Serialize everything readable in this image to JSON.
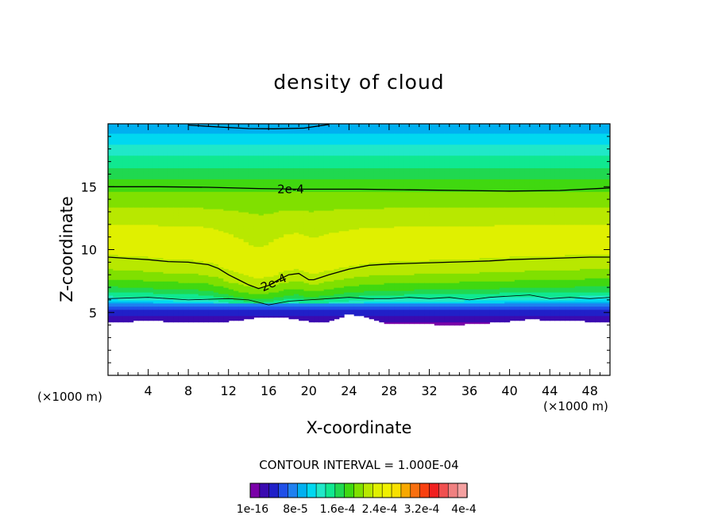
{
  "chart_data": {
    "type": "heatmap",
    "title": "density of cloud",
    "xlabel": "X-coordinate",
    "ylabel": "Z-coordinate",
    "x_unit_label": "(×1000 m)",
    "y_unit_label": "(×1000 m)",
    "xlim": [
      0,
      50
    ],
    "ylim": [
      0,
      20
    ],
    "x_ticks": [
      4,
      8,
      12,
      16,
      20,
      24,
      28,
      32,
      36,
      40,
      44,
      48
    ],
    "y_ticks": [
      5,
      10,
      15
    ],
    "contour_interval_text": "CONTOUR INTERVAL = 1.000E-04",
    "contour_line_labels": [
      "2e-4",
      "2e-4"
    ],
    "colorbar": {
      "tick_labels": [
        "1e-16",
        "8e-5",
        "1.6e-4",
        "2.4e-4",
        "3.2e-4",
        "4e-4"
      ],
      "colors": [
        "#7a00a8",
        "#3a0ab0",
        "#2020c8",
        "#1f4fe8",
        "#1f80f0",
        "#00b0f0",
        "#00d8f0",
        "#20e8c8",
        "#10e890",
        "#20d850",
        "#40d810",
        "#80e000",
        "#b8e800",
        "#e0f000",
        "#f0f000",
        "#f8e000",
        "#f8a800",
        "#f87010",
        "#f84010",
        "#f02020",
        "#f05050",
        "#f08080",
        "#f4a0a0"
      ],
      "range": [
        1e-16,
        0.00042
      ]
    },
    "profile": {
      "z": [
        4.0,
        4.3,
        4.9,
        5.3,
        5.6,
        5.9,
        6.2,
        7.0,
        8.0,
        9.0,
        10.0,
        11.0,
        12.0,
        13.0,
        14.0,
        15.0,
        16.0,
        17.0,
        18.0,
        19.0,
        20.0
      ],
      "value": [
        1e-16,
        2e-05,
        4e-05,
        6e-05,
        8e-05,
        0.00011,
        0.00014,
        0.00018,
        0.00021,
        0.00023,
        0.000242,
        0.000245,
        0.000238,
        0.000225,
        0.00021,
        0.000195,
        0.000175,
        0.000155,
        0.000135,
        0.000115,
        9.5e-05
      ]
    },
    "cloud_base_z": {
      "x": [
        0,
        4,
        8,
        12,
        14,
        16,
        18,
        20,
        22,
        24,
        26,
        28,
        30,
        32,
        34,
        36,
        38,
        40,
        42,
        44,
        46,
        48,
        50
      ],
      "z": [
        4.2,
        4.4,
        4.2,
        4.3,
        4.5,
        4.7,
        4.6,
        4.3,
        4.3,
        4.9,
        4.6,
        4.1,
        4.2,
        4.1,
        4.0,
        4.1,
        4.2,
        4.3,
        4.5,
        4.4,
        4.4,
        4.3,
        4.3
      ]
    },
    "contour_lines": [
      {
        "label": "2e-4",
        "x": [
          0,
          5,
          10,
          15,
          19,
          21,
          25,
          30,
          35,
          40,
          45,
          50
        ],
        "z": [
          15.0,
          15.0,
          14.95,
          14.85,
          14.8,
          14.8,
          14.8,
          14.75,
          14.7,
          14.65,
          14.7,
          14.9
        ]
      },
      {
        "label": "2e-4",
        "x": [
          0,
          2,
          4,
          6,
          8,
          10,
          11,
          12,
          13,
          14,
          15,
          16,
          17,
          18,
          19,
          20,
          20.5,
          22,
          24,
          26,
          28,
          30,
          32,
          34,
          36,
          38,
          40,
          44,
          48,
          50
        ],
        "z": [
          9.4,
          9.3,
          9.2,
          9.05,
          9.0,
          8.8,
          8.5,
          8.0,
          7.6,
          7.2,
          6.9,
          7.15,
          7.6,
          8.0,
          8.1,
          7.6,
          7.6,
          8.0,
          8.45,
          8.75,
          8.85,
          8.9,
          8.95,
          9.0,
          9.05,
          9.1,
          9.2,
          9.3,
          9.4,
          9.4
        ]
      },
      {
        "label": "",
        "x": [
          0,
          4,
          8,
          12,
          14,
          16,
          18,
          20,
          22,
          24,
          26,
          28,
          30,
          32,
          34,
          36,
          38,
          40,
          42,
          44,
          46,
          48,
          50
        ],
        "z": [
          6.1,
          6.2,
          6.0,
          6.1,
          6.0,
          5.6,
          5.9,
          6.0,
          6.1,
          6.2,
          6.1,
          6.1,
          6.2,
          6.1,
          6.2,
          6.0,
          6.2,
          6.3,
          6.4,
          6.1,
          6.2,
          6.1,
          6.2
        ]
      },
      {
        "label": "",
        "x": [
          8,
          11,
          14,
          16.5,
          19.5,
          22
        ],
        "z": [
          19.9,
          19.75,
          19.62,
          19.6,
          19.65,
          19.95
        ]
      }
    ]
  }
}
